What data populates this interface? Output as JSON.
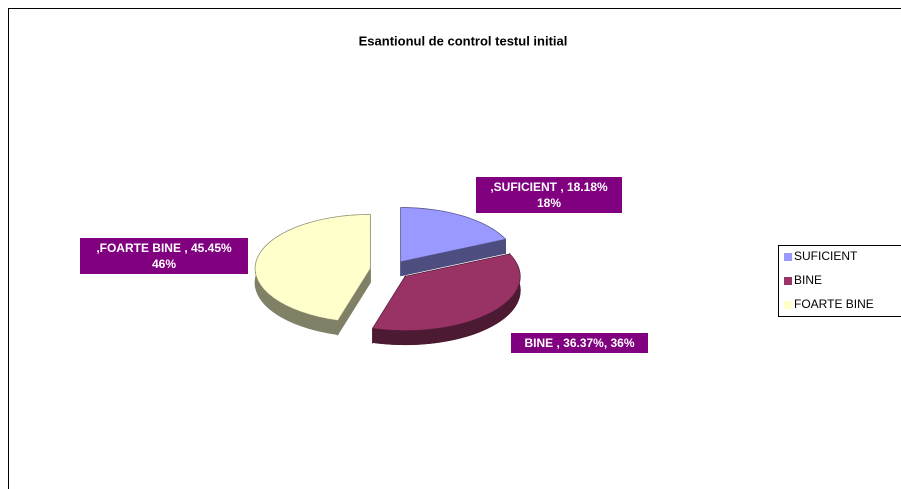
{
  "chart_data": {
    "type": "pie",
    "title": "Esantionul de control testul initial",
    "categories": [
      "SUFICIENT",
      "BINE",
      "FOARTE BINE"
    ],
    "values": [
      18.18,
      36.37,
      45.45
    ],
    "value_labels": [
      ",SUFICIENT , 18.18%\n18%",
      "BINE , 36.37%, 36%",
      ",FOARTE BINE , 45.45%\n46%"
    ],
    "colors": [
      "#9999ff",
      "#993366",
      "#ffffcc"
    ],
    "legend": "right"
  }
}
